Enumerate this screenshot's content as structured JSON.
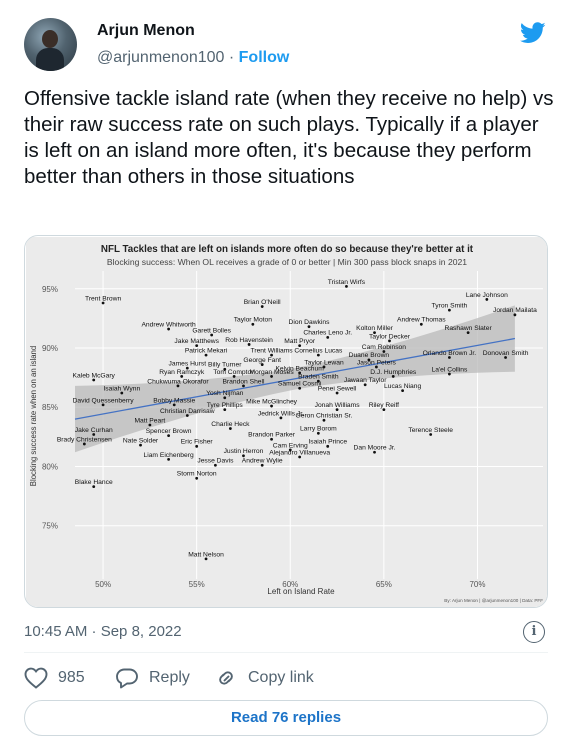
{
  "tweet": {
    "author_name": "Arjun Menon",
    "handle": "@arjunmenon100",
    "separator": " · ",
    "follow_label": "Follow",
    "text": "Offensive tackle island rate (when they receive no help) vs their raw success rate on such plays. Typically if a player is left on an island more often, it's because they perform better than others in those situations",
    "timestamp": "10:45 AM · Sep 8, 2022",
    "likes": "985",
    "reply_label": "Reply",
    "copy_link_label": "Copy link",
    "read_replies_label": "Read 76 replies",
    "icons": [
      "avatar",
      "twitter-bird-icon",
      "info-icon",
      "heart-icon",
      "reply-bubble-icon",
      "link-icon"
    ],
    "accent_color": "#1d9bf0"
  },
  "chart_data": {
    "type": "scatter",
    "title": "NFL Tackles that are left on islands more often do so because they're better at it",
    "subtitle": "Blocking success: When OL receives a grade of 0 or better | Min 300 pass block snaps in 2021",
    "xlabel": "Left on Island Rate",
    "ylabel": "Blocking success rate when on an island",
    "xlim": [
      48.5,
      73.5
    ],
    "ylim": [
      70.5,
      96.5
    ],
    "xticks": [
      50,
      55,
      60,
      65,
      70
    ],
    "yticks": [
      75,
      80,
      85,
      90,
      95
    ],
    "xtick_labels": [
      "50%",
      "55%",
      "60%",
      "65%",
      "70%"
    ],
    "ytick_labels": [
      "75%",
      "80%",
      "85%",
      "90%",
      "95%"
    ],
    "grid": true,
    "trend_line": {
      "x": [
        48.5,
        72
      ],
      "y": [
        84.0,
        90.8
      ],
      "band_color": "#b9b9b9",
      "line_color": "#4472c4"
    },
    "credit": "By: Arjun Menon | @arjunmenon100 | Data: PFF",
    "points": [
      {
        "label": "Tristan Wirfs",
        "x": 63.0,
        "y": 95.2
      },
      {
        "label": "Lane Johnson",
        "x": 70.5,
        "y": 94.1
      },
      {
        "label": "Trent Brown",
        "x": 50.0,
        "y": 93.8
      },
      {
        "label": "Brian O'Neill",
        "x": 58.5,
        "y": 93.5
      },
      {
        "label": "Tyron Smith",
        "x": 68.5,
        "y": 93.2
      },
      {
        "label": "Jordan Mailata",
        "x": 72.0,
        "y": 92.8
      },
      {
        "label": "Andrew Thomas",
        "x": 67.0,
        "y": 92.0
      },
      {
        "label": "Taylor Moton",
        "x": 58.0,
        "y": 92.0
      },
      {
        "label": "Dion Dawkins",
        "x": 61.0,
        "y": 91.8
      },
      {
        "label": "Andrew Whitworth",
        "x": 53.5,
        "y": 91.6
      },
      {
        "label": "Rashawn Slater",
        "x": 69.5,
        "y": 91.3
      },
      {
        "label": "Kolton Miller",
        "x": 64.5,
        "y": 91.3
      },
      {
        "label": "Garett Bolles",
        "x": 55.8,
        "y": 91.1
      },
      {
        "label": "Charles Leno Jr.",
        "x": 62.0,
        "y": 90.9
      },
      {
        "label": "Taylor Decker",
        "x": 65.3,
        "y": 90.6
      },
      {
        "label": "Rob Havenstein",
        "x": 57.8,
        "y": 90.3
      },
      {
        "label": "Jake Matthews",
        "x": 55.0,
        "y": 90.2
      },
      {
        "label": "Matt Pryor",
        "x": 60.5,
        "y": 90.2
      },
      {
        "label": "Cam Robinson",
        "x": 65.0,
        "y": 89.7
      },
      {
        "label": "Patrick Mekari",
        "x": 55.5,
        "y": 89.4
      },
      {
        "label": "Trent Williams",
        "x": 59.0,
        "y": 89.4
      },
      {
        "label": "Cornelius Lucas",
        "x": 61.5,
        "y": 89.4
      },
      {
        "label": "Orlando Brown Jr.",
        "x": 68.5,
        "y": 89.2
      },
      {
        "label": "Donovan Smith",
        "x": 71.5,
        "y": 89.2
      },
      {
        "label": "Duane Brown",
        "x": 64.2,
        "y": 89.0
      },
      {
        "label": "George Fant",
        "x": 58.5,
        "y": 88.6
      },
      {
        "label": "Taylor Lewan",
        "x": 61.8,
        "y": 88.4
      },
      {
        "label": "Jason Peters",
        "x": 64.6,
        "y": 88.4
      },
      {
        "label": "James Hurst",
        "x": 54.5,
        "y": 88.3
      },
      {
        "label": "Billy Turner",
        "x": 56.5,
        "y": 88.2
      },
      {
        "label": "Kelvin Beachum",
        "x": 60.5,
        "y": 87.9
      },
      {
        "label": "La'el Collins",
        "x": 68.5,
        "y": 87.8
      },
      {
        "label": "Ryan Ramczyk",
        "x": 54.2,
        "y": 87.6
      },
      {
        "label": "Tom Compton",
        "x": 57.0,
        "y": 87.6
      },
      {
        "label": "Morgan Moses",
        "x": 59.0,
        "y": 87.6
      },
      {
        "label": "D.J. Humphries",
        "x": 65.5,
        "y": 87.6
      },
      {
        "label": "Kaleb McGary",
        "x": 49.5,
        "y": 87.3
      },
      {
        "label": "Braden Smith",
        "x": 61.5,
        "y": 87.2
      },
      {
        "label": "Jawaan Taylor",
        "x": 64.0,
        "y": 86.9
      },
      {
        "label": "Chukwuma Okorafor",
        "x": 54.0,
        "y": 86.8
      },
      {
        "label": "Brandon Shell",
        "x": 57.5,
        "y": 86.8
      },
      {
        "label": "Samuel Cosmi",
        "x": 60.5,
        "y": 86.6
      },
      {
        "label": "Lucas Niang",
        "x": 66.0,
        "y": 86.4
      },
      {
        "label": "Isaiah Wynn",
        "x": 51.0,
        "y": 86.2
      },
      {
        "label": "Penei Sewell",
        "x": 62.5,
        "y": 86.2
      },
      {
        "label": "Yosh Nijman",
        "x": 56.5,
        "y": 85.8
      },
      {
        "label": "David Quessenberry",
        "x": 50.0,
        "y": 85.2
      },
      {
        "label": "Bobby Massie",
        "x": 53.8,
        "y": 85.2
      },
      {
        "label": "Mike McGlinchey",
        "x": 59.0,
        "y": 85.1
      },
      {
        "label": "Tyre Phillips",
        "x": 56.5,
        "y": 84.8
      },
      {
        "label": "Jonah Williams",
        "x": 62.5,
        "y": 84.8
      },
      {
        "label": "Riley Reiff",
        "x": 65.0,
        "y": 84.8
      },
      {
        "label": "Christian Darrisaw",
        "x": 54.5,
        "y": 84.3
      },
      {
        "label": "Jedrick Wills Jr.",
        "x": 59.5,
        "y": 84.1
      },
      {
        "label": "Geron Christian Sr.",
        "x": 61.8,
        "y": 83.9
      },
      {
        "label": "Matt Peart",
        "x": 52.5,
        "y": 83.5
      },
      {
        "label": "Charlie Heck",
        "x": 56.8,
        "y": 83.2
      },
      {
        "label": "Terence Steele",
        "x": 67.5,
        "y": 82.7
      },
      {
        "label": "Larry Borom",
        "x": 61.5,
        "y": 82.8
      },
      {
        "label": "Jake Curhan",
        "x": 49.5,
        "y": 82.7
      },
      {
        "label": "Spencer Brown",
        "x": 53.5,
        "y": 82.6
      },
      {
        "label": "Brandon Parker",
        "x": 59.0,
        "y": 82.3
      },
      {
        "label": "Brady Christensen",
        "x": 49.0,
        "y": 81.9
      },
      {
        "label": "Nate Solder",
        "x": 52.0,
        "y": 81.8
      },
      {
        "label": "Isaiah Prince",
        "x": 62.0,
        "y": 81.7
      },
      {
        "label": "Eric Fisher",
        "x": 55.0,
        "y": 81.7
      },
      {
        "label": "Cam Erving",
        "x": 60.0,
        "y": 81.4
      },
      {
        "label": "Dan Moore Jr.",
        "x": 64.5,
        "y": 81.2
      },
      {
        "label": "Justin Herron",
        "x": 57.5,
        "y": 80.9
      },
      {
        "label": "Alejandro Villanueva",
        "x": 60.5,
        "y": 80.8
      },
      {
        "label": "Liam Eichenberg",
        "x": 53.5,
        "y": 80.6
      },
      {
        "label": "Jesse Davis",
        "x": 56.0,
        "y": 80.1
      },
      {
        "label": "Andrew Wylie",
        "x": 58.5,
        "y": 80.1
      },
      {
        "label": "Storm Norton",
        "x": 55.0,
        "y": 79.0
      },
      {
        "label": "Blake Hance",
        "x": 49.5,
        "y": 78.3
      },
      {
        "label": "Matt Nelson",
        "x": 55.5,
        "y": 72.2
      }
    ]
  }
}
